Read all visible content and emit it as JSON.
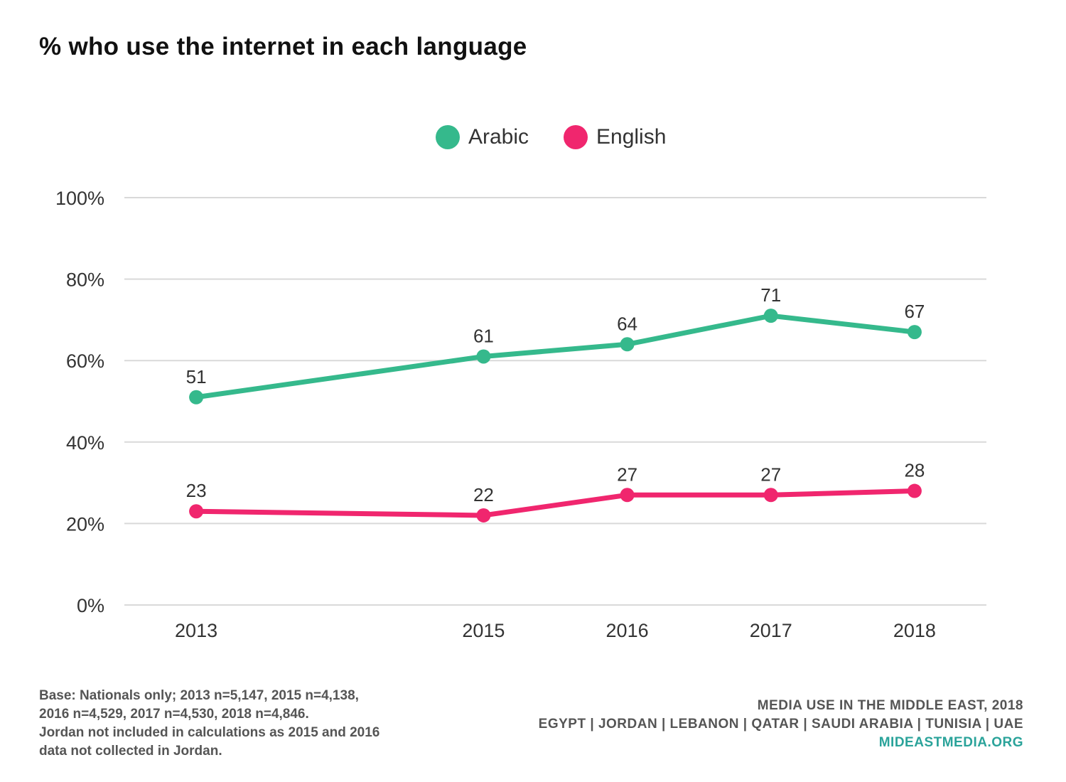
{
  "title": "% who use the internet in each language",
  "chart_data": {
    "type": "line",
    "x": [
      "2013",
      "2015",
      "2016",
      "2017",
      "2018"
    ],
    "x_numeric": [
      2013,
      2015,
      2016,
      2017,
      2018
    ],
    "xlim": [
      2012.5,
      2018.5
    ],
    "ylim": [
      0,
      100
    ],
    "yticks": [
      0,
      20,
      40,
      60,
      80,
      100
    ],
    "ytick_labels": [
      "0%",
      "20%",
      "40%",
      "60%",
      "80%",
      "100%"
    ],
    "grid": true,
    "legend_position": "top-center",
    "series": [
      {
        "name": "Arabic",
        "color": "#35b98c",
        "values": [
          51,
          61,
          64,
          71,
          67
        ]
      },
      {
        "name": "English",
        "color": "#f0266e",
        "values": [
          23,
          22,
          27,
          27,
          28
        ]
      }
    ]
  },
  "footnote": [
    "Base: Nationals only; 2013 n=5,147, 2015 n=4,138,",
    "2016 n=4,529, 2017 n=4,530, 2018 n=4,846.",
    "Jordan not included in calculations as 2015 and 2016",
    "data not collected in Jordan."
  ],
  "source": {
    "line1": "MEDIA USE IN THE MIDDLE EAST, 2018",
    "line2": "EGYPT | JORDAN | LEBANON | QATAR | SAUDI ARABIA | TUNISIA | UAE",
    "site": "MIDEASTMEDIA.ORG"
  }
}
